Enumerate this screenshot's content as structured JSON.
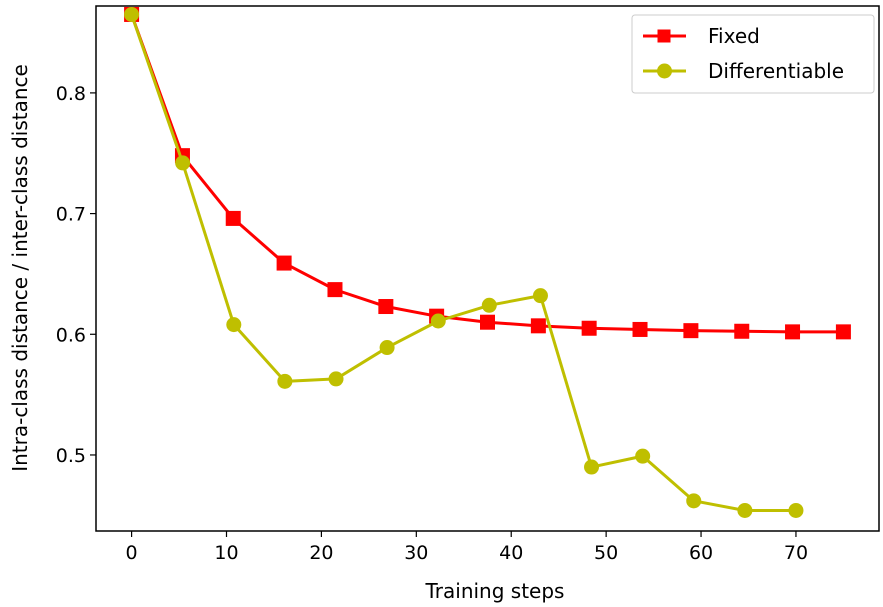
{
  "chart_data": {
    "type": "line",
    "title": "",
    "xlabel": "Training steps",
    "ylabel": "Intra-class distance / inter-class distance",
    "xlim": [
      -3.75,
      78.75
    ],
    "ylim": [
      0.437,
      0.872
    ],
    "xticks": [
      0,
      10,
      20,
      30,
      40,
      50,
      60,
      70
    ],
    "xtick_labels": [
      "0",
      "10",
      "20",
      "30",
      "40",
      "50",
      "60",
      "70"
    ],
    "yticks": [
      0.5,
      0.6,
      0.7,
      0.8
    ],
    "ytick_labels": [
      "0.5",
      "0.6",
      "0.7",
      "0.8"
    ],
    "grid": false,
    "legend_position": "top-right",
    "series": [
      {
        "name": "Fixed",
        "color": "#ff0000",
        "marker": "square",
        "x": [
          0,
          5.36,
          10.71,
          16.07,
          21.43,
          26.79,
          32.14,
          37.5,
          42.86,
          48.21,
          53.57,
          58.93,
          64.29,
          69.64,
          75
        ],
        "y": [
          0.865,
          0.748,
          0.696,
          0.659,
          0.637,
          0.623,
          0.615,
          0.61,
          0.607,
          0.605,
          0.604,
          0.603,
          0.6025,
          0.602,
          0.602
        ]
      },
      {
        "name": "Differentiable",
        "color": "#bfbf00",
        "marker": "circle",
        "x": [
          0,
          5.38,
          10.77,
          16.15,
          21.54,
          26.92,
          32.31,
          37.69,
          43.08,
          48.46,
          53.85,
          59.23,
          64.62,
          70
        ],
        "y": [
          0.865,
          0.742,
          0.608,
          0.561,
          0.563,
          0.589,
          0.611,
          0.624,
          0.632,
          0.49,
          0.499,
          0.462,
          0.454,
          0.454
        ]
      }
    ]
  }
}
